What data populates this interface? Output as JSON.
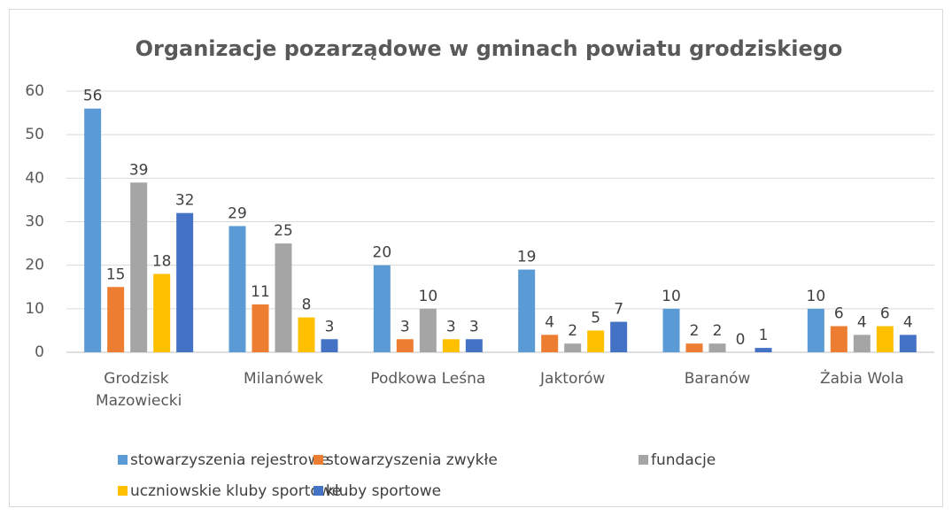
{
  "chart_data": {
    "type": "bar",
    "title": "Organizacje pozarządowe w gminach powiatu grodziskiego",
    "categories": [
      "Grodzisk Mazowiecki",
      "Milanówek",
      "Podkowa Leśna",
      "Jaktorów",
      "Baranów",
      "Żabia Wola"
    ],
    "series": [
      {
        "name": "stowarzyszenia rejestrowe",
        "color": "#5b9bd5",
        "values": [
          56,
          29,
          20,
          19,
          10,
          10
        ]
      },
      {
        "name": "stowarzyszenia zwykłe",
        "color": "#ed7d31",
        "values": [
          15,
          11,
          3,
          4,
          2,
          6
        ]
      },
      {
        "name": "fundacje",
        "color": "#a5a5a5",
        "values": [
          39,
          25,
          10,
          2,
          2,
          4
        ]
      },
      {
        "name": "uczniowskie kluby sportowe",
        "color": "#ffc000",
        "values": [
          18,
          8,
          3,
          5,
          0,
          6
        ]
      },
      {
        "name": "kluby sportowe",
        "color": "#4472c4",
        "values": [
          32,
          3,
          3,
          7,
          1,
          4
        ]
      }
    ],
    "ylim": [
      0,
      60
    ],
    "yticks": [
      0,
      10,
      20,
      30,
      40,
      50,
      60
    ],
    "grid": true,
    "legend": "bottom"
  }
}
